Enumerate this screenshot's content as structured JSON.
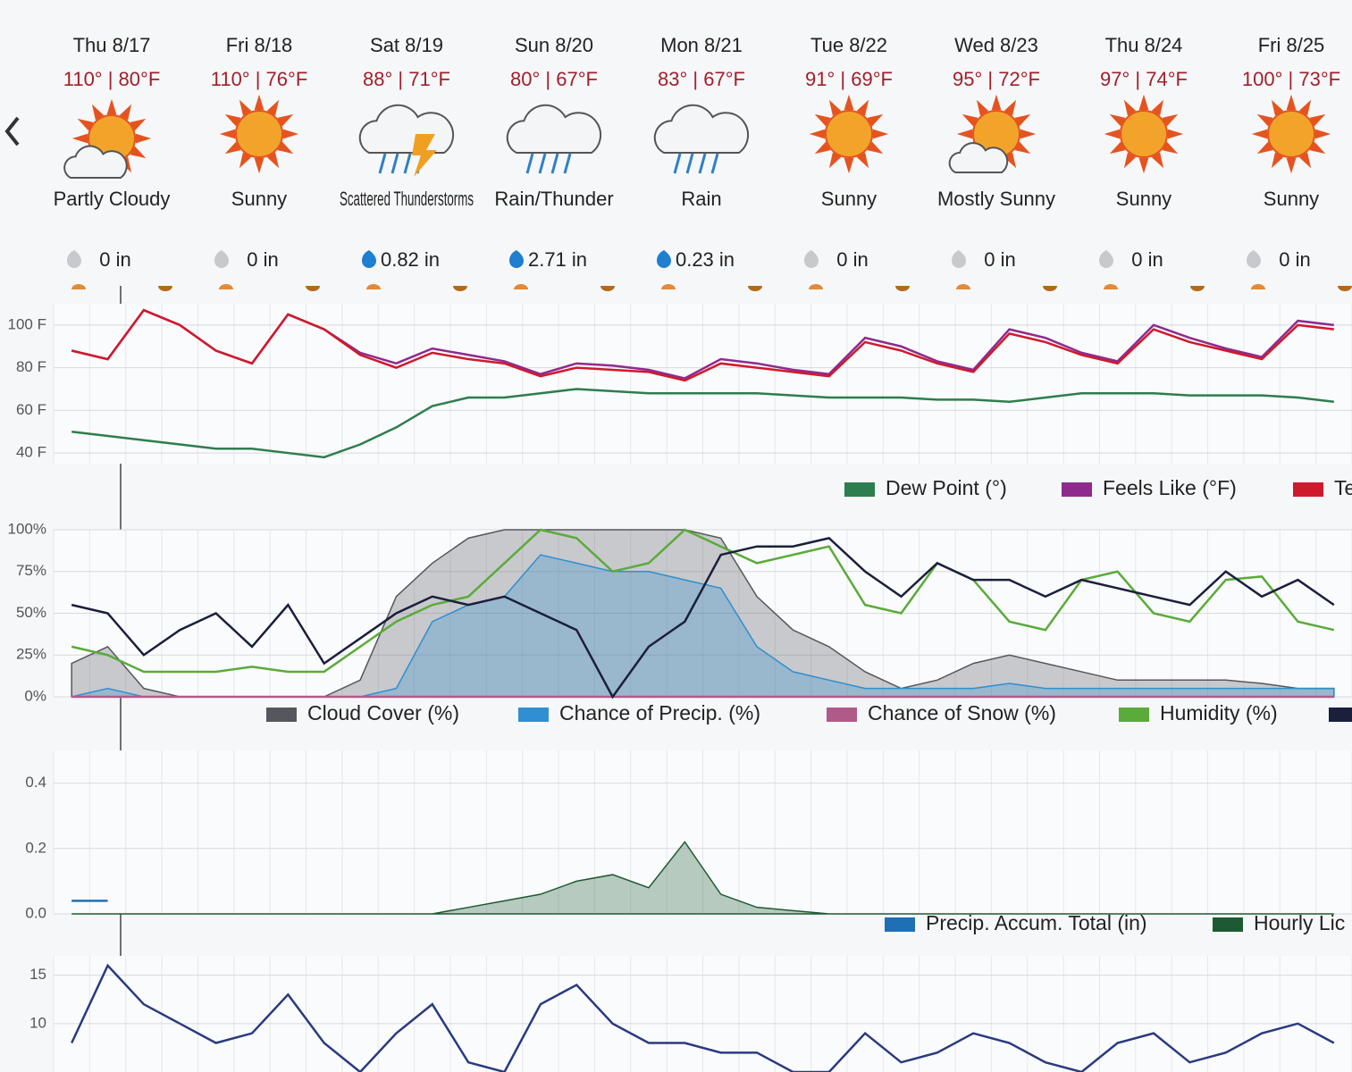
{
  "days": [
    {
      "date": "Thu 8/17",
      "temps": "110° | 80°F",
      "condition": "Partly Cloudy",
      "precip": "0 in"
    },
    {
      "date": "Fri 8/18",
      "temps": "110° | 76°F",
      "condition": "Sunny",
      "precip": "0 in"
    },
    {
      "date": "Sat 8/19",
      "temps": "88° | 71°F",
      "condition": "Scattered Thunderstorms",
      "precip": "0.82 in"
    },
    {
      "date": "Sun 8/20",
      "temps": "80° | 67°F",
      "condition": "Rain/Thunder",
      "precip": "2.71 in"
    },
    {
      "date": "Mon 8/21",
      "temps": "83° | 67°F",
      "condition": "Rain",
      "precip": "0.23 in"
    },
    {
      "date": "Tue 8/22",
      "temps": "91° | 69°F",
      "condition": "Sunny",
      "precip": "0 in"
    },
    {
      "date": "Wed 8/23",
      "temps": "95° | 72°F",
      "condition": "Mostly Sunny",
      "precip": "0 in"
    },
    {
      "date": "Thu 8/24",
      "temps": "97° | 74°F",
      "condition": "Sunny",
      "precip": "0 in"
    },
    {
      "date": "Fri 8/25",
      "temps": "100° | 73°F",
      "condition": "Sunny",
      "precip": "0 in"
    }
  ],
  "chart_data": [
    {
      "type": "line",
      "ylim": [
        35,
        110
      ],
      "yticks": [
        {
          "value": 40,
          "label": "40 F"
        },
        {
          "value": 60,
          "label": "60 F"
        },
        {
          "value": 80,
          "label": "80 F"
        },
        {
          "value": 100,
          "label": "100 F"
        }
      ],
      "grid": true,
      "series": [
        {
          "name": "Dew Point (°)",
          "color": "#2e7d4f",
          "values": [
            50,
            48,
            46,
            44,
            42,
            42,
            40,
            38,
            44,
            52,
            62,
            66,
            66,
            68,
            70,
            69,
            68,
            68,
            68,
            68,
            67,
            66,
            66,
            66,
            65,
            65,
            64,
            66,
            68,
            68,
            68,
            67,
            67,
            67,
            66,
            64
          ]
        },
        {
          "name": "Feels Like (°F)",
          "color": "#8e2a8e",
          "values": [
            88,
            84,
            107,
            100,
            88,
            82,
            105,
            98,
            87,
            82,
            89,
            86,
            83,
            77,
            82,
            81,
            79,
            75,
            84,
            82,
            79,
            77,
            94,
            90,
            83,
            79,
            98,
            94,
            87,
            83,
            100,
            94,
            89,
            85,
            102,
            100
          ]
        },
        {
          "name": "Te",
          "color": "#d0192c",
          "values": [
            88,
            84,
            107,
            100,
            88,
            82,
            105,
            98,
            86,
            80,
            87,
            84,
            82,
            76,
            80,
            79,
            78,
            74,
            82,
            80,
            78,
            76,
            92,
            88,
            82,
            78,
            96,
            92,
            86,
            82,
            98,
            92,
            88,
            84,
            100,
            98
          ]
        }
      ]
    },
    {
      "type": "line",
      "ylim": [
        0,
        100
      ],
      "yticks": [
        {
          "value": 0,
          "label": "0%"
        },
        {
          "value": 25,
          "label": "25%"
        },
        {
          "value": 50,
          "label": "50%"
        },
        {
          "value": 75,
          "label": "75%"
        },
        {
          "value": 100,
          "label": "100%"
        }
      ],
      "grid": true,
      "series": [
        {
          "name": "Cloud Cover (%)",
          "color": "#55575c",
          "style": "area",
          "values": [
            20,
            30,
            5,
            0,
            0,
            0,
            0,
            0,
            10,
            60,
            80,
            95,
            100,
            100,
            100,
            100,
            100,
            100,
            95,
            60,
            40,
            30,
            15,
            5,
            10,
            20,
            25,
            20,
            15,
            10,
            10,
            10,
            10,
            8,
            5,
            5
          ]
        },
        {
          "name": "Chance of Precip. (%)",
          "color": "#2f8fd0",
          "style": "area",
          "values": [
            0,
            5,
            0,
            0,
            0,
            0,
            0,
            0,
            0,
            5,
            45,
            55,
            60,
            85,
            80,
            75,
            75,
            70,
            65,
            30,
            15,
            10,
            5,
            5,
            5,
            5,
            8,
            5,
            5,
            5,
            5,
            5,
            5,
            5,
            5,
            5
          ]
        },
        {
          "name": "Chance of Snow (%)",
          "color": "#b05a8a",
          "values": [
            0,
            0,
            0,
            0,
            0,
            0,
            0,
            0,
            0,
            0,
            0,
            0,
            0,
            0,
            0,
            0,
            0,
            0,
            0,
            0,
            0,
            0,
            0,
            0,
            0,
            0,
            0,
            0,
            0,
            0,
            0,
            0,
            0,
            0,
            0,
            0
          ]
        },
        {
          "name": "Humidity (%)",
          "color": "#5aab3a",
          "values": [
            30,
            25,
            15,
            15,
            15,
            18,
            15,
            15,
            30,
            45,
            55,
            60,
            80,
            100,
            95,
            75,
            80,
            100,
            90,
            80,
            85,
            90,
            55,
            50,
            80,
            70,
            45,
            40,
            70,
            75,
            50,
            45,
            70,
            72,
            45,
            40
          ]
        },
        {
          "color": "#1a1f3c",
          "values": [
            55,
            50,
            25,
            40,
            50,
            30,
            55,
            20,
            35,
            50,
            60,
            55,
            60,
            50,
            40,
            0,
            30,
            45,
            85,
            90,
            90,
            95,
            75,
            60,
            80,
            70,
            70,
            60,
            70,
            65,
            60,
            55,
            75,
            60,
            70,
            55
          ]
        }
      ]
    },
    {
      "type": "line",
      "ylim": [
        0,
        0.5
      ],
      "yticks": [
        {
          "value": 0,
          "label": "0.0"
        },
        {
          "value": 0.2,
          "label": "0.2"
        },
        {
          "value": 0.4,
          "label": "0.4"
        }
      ],
      "grid": true,
      "series": [
        {
          "name": "Precip. Accum. Total (in)",
          "color": "#1f6fb5",
          "values": [
            0.04,
            0.04,
            null,
            null,
            null,
            null,
            null,
            null,
            null,
            null,
            null,
            null,
            null,
            null,
            null,
            null,
            null,
            null,
            null,
            null,
            null,
            null,
            null,
            null,
            null,
            null,
            null,
            null,
            null,
            null,
            null,
            null,
            null,
            null,
            null,
            null
          ]
        },
        {
          "name": "Hourly Lic",
          "color": "#1d5a33",
          "style": "area",
          "values": [
            0,
            0,
            0,
            0,
            0,
            0,
            0,
            0,
            0,
            0,
            0,
            0.02,
            0.04,
            0.06,
            0.1,
            0.12,
            0.08,
            0.22,
            0.06,
            0.02,
            0.01,
            0,
            0,
            0,
            0,
            0,
            0,
            0,
            0,
            0,
            0,
            0,
            0,
            0,
            0,
            0
          ]
        }
      ]
    },
    {
      "type": "line",
      "ylim": [
        5,
        17
      ],
      "yticks": [
        10,
        15
      ],
      "grid": true,
      "series": [
        {
          "color": "#2a3a80",
          "values": [
            8,
            16,
            12,
            10,
            8,
            9,
            13,
            8,
            5,
            9,
            12,
            6,
            5,
            12,
            14,
            10,
            8,
            8,
            7,
            7,
            5,
            5,
            9,
            6,
            7,
            9,
            8,
            6,
            5,
            8,
            9,
            6,
            7,
            9,
            10,
            8
          ]
        }
      ]
    }
  ]
}
